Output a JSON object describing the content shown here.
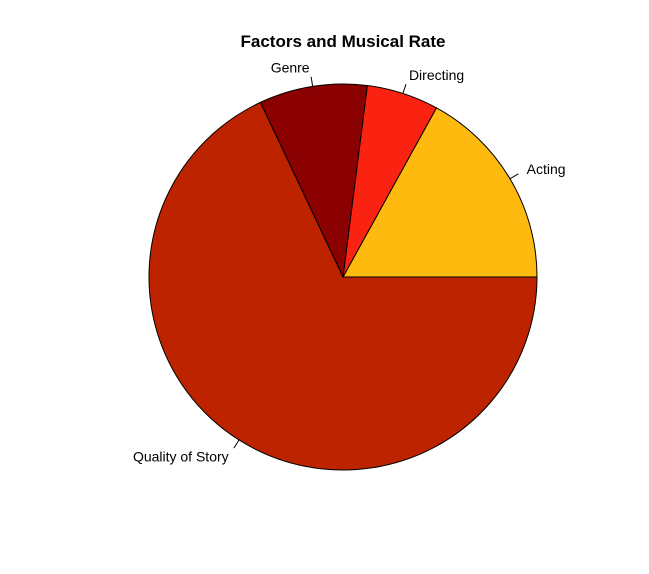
{
  "chart_data": {
    "type": "pie",
    "title": "Factors and Musical Rate",
    "start_angle_deg": 0,
    "direction": "counterclockwise",
    "slices": [
      {
        "label": "Acting",
        "value": 17,
        "color": "#FFBA0F"
      },
      {
        "label": "Directing",
        "value": 6,
        "color": "#FA2210"
      },
      {
        "label": "Genre",
        "value": 9,
        "color": "#8B0000"
      },
      {
        "label": "Quality of Story",
        "value": 68,
        "color": "#BE2300"
      }
    ],
    "border_color": "#000000"
  }
}
